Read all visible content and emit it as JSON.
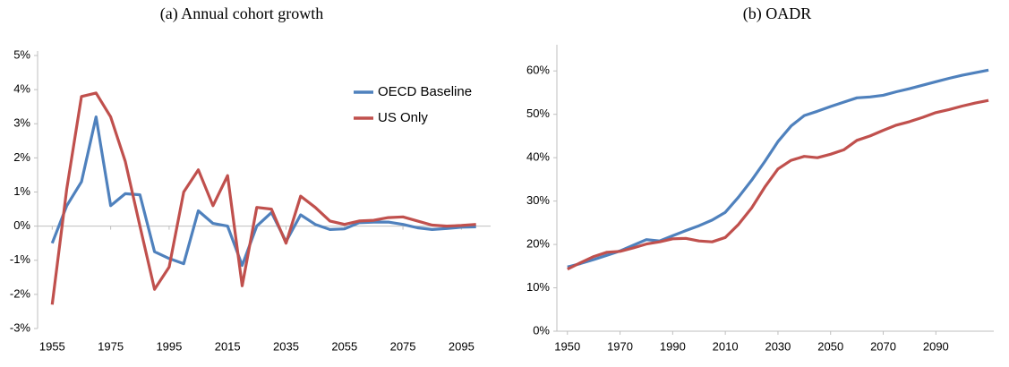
{
  "chart_data": [
    {
      "type": "line",
      "title": "(a)  Annual cohort growth",
      "x": [
        1955,
        1960,
        1965,
        1970,
        1975,
        1980,
        1985,
        1990,
        1995,
        2000,
        2005,
        2010,
        2015,
        2020,
        2025,
        2030,
        2035,
        2040,
        2045,
        2050,
        2055,
        2060,
        2065,
        2070,
        2075,
        2080,
        2085,
        2090,
        2095,
        2100
      ],
      "series": [
        {
          "name": "OECD Baseline",
          "color": "#4f81bd",
          "values": [
            -0.5,
            0.6,
            1.3,
            3.2,
            0.6,
            0.95,
            0.92,
            -0.75,
            -0.95,
            -1.1,
            0.45,
            0.08,
            0.0,
            -1.15,
            0.0,
            0.4,
            -0.45,
            0.33,
            0.05,
            -0.1,
            -0.08,
            0.1,
            0.12,
            0.12,
            0.05,
            -0.05,
            -0.1,
            -0.07,
            -0.03,
            -0.02
          ]
        },
        {
          "name": "US Only",
          "color": "#c0504d",
          "values": [
            -2.3,
            1.1,
            3.8,
            3.9,
            3.2,
            1.9,
            0.0,
            -1.85,
            -1.2,
            1.0,
            1.65,
            0.6,
            1.48,
            -1.75,
            0.55,
            0.5,
            -0.5,
            0.88,
            0.55,
            0.15,
            0.05,
            0.15,
            0.17,
            0.25,
            0.27,
            0.15,
            0.03,
            0.0,
            0.02,
            0.05
          ]
        }
      ],
      "xlim": [
        1950,
        2105
      ],
      "xticks": [
        1955,
        1975,
        1995,
        2015,
        2035,
        2055,
        2075,
        2095
      ],
      "ylim": [
        -3,
        5
      ],
      "yticks": [
        {
          "value": -3,
          "label": "-3%"
        },
        {
          "value": -2,
          "label": "-2%"
        },
        {
          "value": -1,
          "label": "-1%"
        },
        {
          "value": 0,
          "label": "0%"
        },
        {
          "value": 1,
          "label": "1%"
        },
        {
          "value": 2,
          "label": "2%"
        },
        {
          "value": 3,
          "label": "3%"
        },
        {
          "value": 4,
          "label": "4%"
        },
        {
          "value": 5,
          "label": "5%"
        }
      ],
      "grid": false,
      "legend": "upper right"
    },
    {
      "type": "line",
      "title": "(b)  OADR",
      "x": [
        1950,
        1955,
        1960,
        1965,
        1970,
        1975,
        1980,
        1985,
        1990,
        1995,
        2000,
        2005,
        2010,
        2015,
        2020,
        2025,
        2030,
        2035,
        2040,
        2045,
        2050,
        2055,
        2060,
        2065,
        2070,
        2075,
        2080,
        2085,
        2090,
        2095,
        2100,
        2105,
        2110
      ],
      "series": [
        {
          "color": "#4f81bd",
          "values": [
            14.8,
            15.6,
            16.5,
            17.5,
            18.5,
            19.8,
            21.1,
            20.8,
            22.0,
            23.2,
            24.3,
            25.6,
            27.4,
            30.9,
            34.8,
            39.1,
            43.7,
            47.3,
            49.7,
            50.7,
            51.8,
            52.8,
            53.8,
            54.0,
            54.4,
            55.2,
            55.9,
            56.7,
            57.5,
            58.3,
            59.0,
            59.6,
            60.2
          ]
        },
        {
          "color": "#c0504d",
          "values": [
            14.3,
            15.8,
            17.2,
            18.2,
            18.4,
            19.2,
            20.1,
            20.6,
            21.3,
            21.4,
            20.8,
            20.6,
            21.6,
            24.6,
            28.4,
            33.2,
            37.4,
            39.4,
            40.3,
            40.0,
            40.8,
            41.8,
            44.0,
            45.0,
            46.3,
            47.5,
            48.3,
            49.3,
            50.4,
            51.1,
            51.9,
            52.6,
            53.2
          ]
        }
      ],
      "xlim": [
        1946,
        2112
      ],
      "xticks": [
        1950,
        1970,
        1990,
        2010,
        2030,
        2050,
        2070,
        2090
      ],
      "ylim": [
        0,
        65
      ],
      "yticks": [
        {
          "value": 0,
          "label": "0%"
        },
        {
          "value": 10,
          "label": "10%"
        },
        {
          "value": 20,
          "label": "20%"
        },
        {
          "value": 30,
          "label": "30%"
        },
        {
          "value": 40,
          "label": "40%"
        },
        {
          "value": 50,
          "label": "50%"
        },
        {
          "value": 60,
          "label": "60%"
        }
      ],
      "grid": false
    }
  ]
}
